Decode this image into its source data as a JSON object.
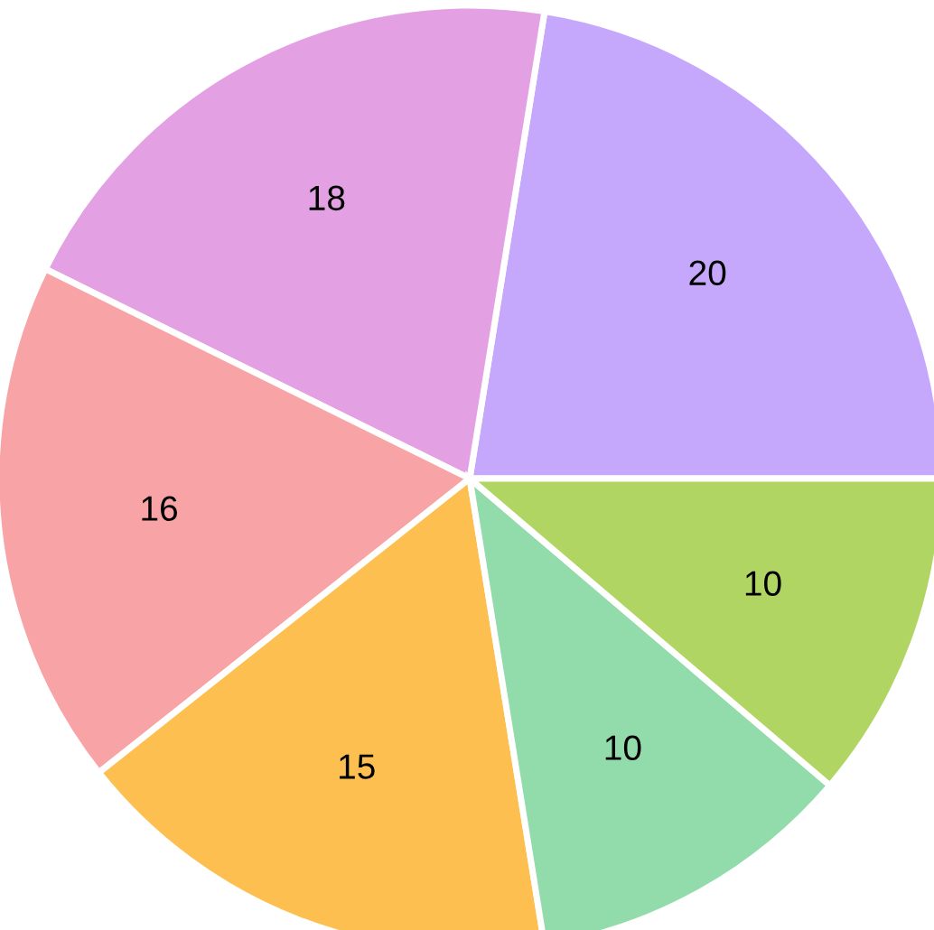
{
  "chart_data": {
    "type": "pie",
    "categories": [
      null,
      null,
      null,
      null,
      null,
      null
    ],
    "values": [
      20,
      18,
      16,
      15,
      10,
      10
    ],
    "colors": [
      "#c5a8fb",
      "#e3a0e3",
      "#f8a3a6",
      "#fdbf50",
      "#92dbaa",
      "#b0d563"
    ],
    "data_labels": true
  }
}
